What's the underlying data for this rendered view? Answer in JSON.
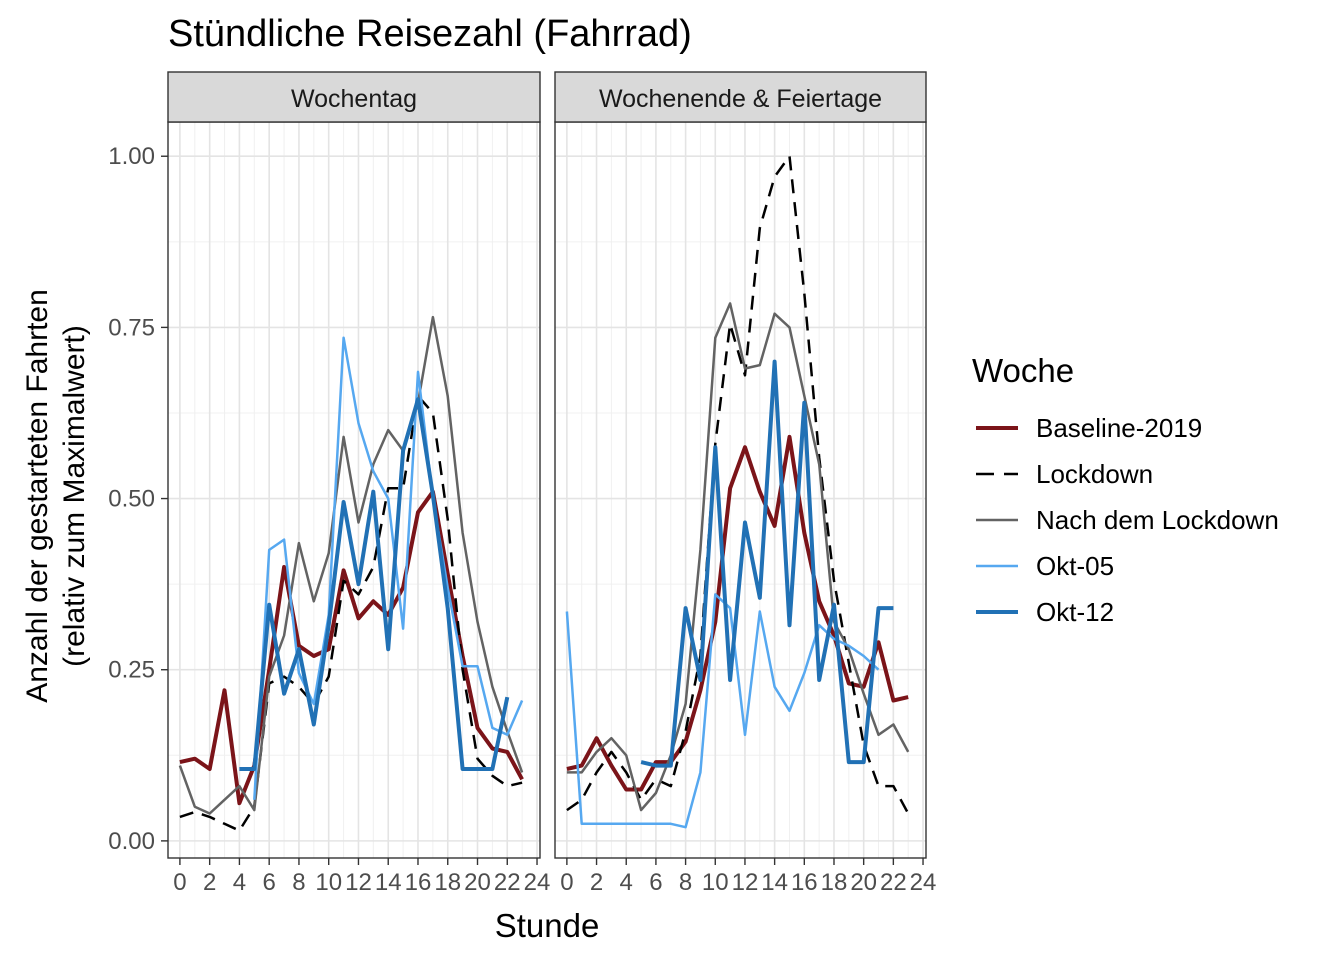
{
  "chart_data": {
    "type": "line",
    "title": "Stündliche Reisezahl (Fahrrad)",
    "xlabel": "Stunde",
    "ylabel_line1": "Anzahl der gestarteten Fahrten",
    "ylabel_line2": "(relativ zum Maximalwert)",
    "xlim": [
      -0.8,
      24.2
    ],
    "ylim": [
      -0.025,
      1.05
    ],
    "x_ticks": [
      0,
      2,
      4,
      6,
      8,
      10,
      12,
      14,
      16,
      18,
      20,
      22,
      24
    ],
    "x_tick_labels": [
      "0",
      "2",
      "4",
      "6",
      "8",
      "10",
      "12",
      "14",
      "16",
      "18",
      "20",
      "22",
      "24"
    ],
    "y_ticks": [
      0,
      0.25,
      0.5,
      0.75,
      1.0
    ],
    "y_tick_labels": [
      "0.00",
      "0.25",
      "0.50",
      "0.75",
      "1.00"
    ],
    "grid": true,
    "legend": {
      "title": "Woche",
      "placement": "right",
      "entries": [
        "Baseline-2019",
        "Lockdown",
        "Nach dem Lockdown",
        "Okt-05",
        "Okt-12"
      ]
    },
    "series_styles": [
      {
        "name": "Baseline-2019",
        "color": "#7b1419",
        "dash": "solid",
        "weight": "bold"
      },
      {
        "name": "Lockdown",
        "color": "#000000",
        "dash": "dashed",
        "weight": "normal"
      },
      {
        "name": "Nach dem Lockdown",
        "color": "#636363",
        "dash": "solid",
        "weight": "normal"
      },
      {
        "name": "Okt-05",
        "color": "#56a8f0",
        "dash": "solid",
        "weight": "normal"
      },
      {
        "name": "Okt-12",
        "color": "#2171b5",
        "dash": "solid",
        "weight": "bold"
      }
    ],
    "panels": [
      {
        "label": "Wochentag",
        "series": [
          {
            "name": "Baseline-2019",
            "x": [
              0,
              1,
              2,
              3,
              4,
              5,
              6,
              7,
              8,
              9,
              10,
              11,
              12,
              13,
              14,
              15,
              16,
              17,
              18,
              19,
              20,
              21,
              22,
              23
            ],
            "values": [
              0.115,
              0.12,
              0.105,
              0.22,
              0.055,
              0.11,
              0.25,
              0.4,
              0.285,
              0.27,
              0.28,
              0.395,
              0.325,
              0.35,
              0.33,
              0.37,
              0.48,
              0.51,
              0.39,
              0.27,
              0.165,
              0.135,
              0.13,
              0.09
            ]
          },
          {
            "name": "Lockdown",
            "x": [
              0,
              1,
              2,
              3,
              4,
              5,
              6,
              7,
              8,
              9,
              10,
              11,
              12,
              13,
              14,
              15,
              16,
              17,
              18,
              19,
              20,
              21,
              22,
              23
            ],
            "values": [
              0.035,
              0.042,
              0.035,
              0.025,
              0.015,
              0.05,
              0.23,
              0.24,
              0.225,
              0.2,
              0.24,
              0.38,
              0.36,
              0.4,
              0.515,
              0.515,
              0.65,
              0.625,
              0.47,
              0.25,
              0.12,
              0.095,
              0.08,
              0.085
            ]
          },
          {
            "name": "Nach dem Lockdown",
            "x": [
              0,
              1,
              2,
              3,
              4,
              5,
              6,
              7,
              8,
              9,
              10,
              11,
              12,
              13,
              14,
              15,
              16,
              17,
              18,
              19,
              20,
              21,
              22,
              23
            ],
            "values": [
              0.11,
              0.05,
              0.04,
              0.06,
              0.08,
              0.045,
              0.24,
              0.3,
              0.435,
              0.35,
              0.42,
              0.59,
              0.465,
              0.55,
              0.6,
              0.57,
              0.64,
              0.765,
              0.65,
              0.45,
              0.32,
              0.225,
              0.16,
              0.1
            ]
          },
          {
            "name": "Okt-05",
            "x": [
              5,
              6,
              7,
              8,
              9,
              10,
              11,
              12,
              13,
              14,
              15,
              16,
              17,
              18,
              19,
              20,
              21,
              22,
              23
            ],
            "values": [
              0.06,
              0.425,
              0.44,
              0.245,
              0.2,
              0.33,
              0.735,
              0.61,
              0.54,
              0.5,
              0.31,
              0.685,
              0.5,
              0.37,
              0.255,
              0.255,
              0.165,
              0.155,
              0.205
            ]
          },
          {
            "name": "Okt-12",
            "x": [
              4,
              5,
              6,
              7,
              8,
              9,
              10,
              11,
              12,
              13,
              14,
              15,
              16,
              17,
              18,
              19,
              20,
              21,
              22
            ],
            "values": [
              0.105,
              0.105,
              0.345,
              0.215,
              0.28,
              0.17,
              0.315,
              0.495,
              0.375,
              0.51,
              0.28,
              0.57,
              0.645,
              0.505,
              0.34,
              0.105,
              0.105,
              0.105,
              0.21
            ]
          }
        ]
      },
      {
        "label": "Wochenende & Feiertage",
        "series": [
          {
            "name": "Baseline-2019",
            "x": [
              0,
              1,
              2,
              3,
              4,
              5,
              6,
              7,
              8,
              9,
              10,
              11,
              12,
              13,
              14,
              15,
              16,
              17,
              18,
              19,
              20,
              21,
              22,
              23
            ],
            "values": [
              0.105,
              0.11,
              0.15,
              0.11,
              0.075,
              0.075,
              0.115,
              0.115,
              0.145,
              0.22,
              0.32,
              0.515,
              0.575,
              0.51,
              0.46,
              0.59,
              0.45,
              0.35,
              0.3,
              0.23,
              0.225,
              0.29,
              0.205,
              0.21
            ]
          },
          {
            "name": "Lockdown",
            "x": [
              0,
              1,
              2,
              3,
              4,
              5,
              6,
              7,
              8,
              9,
              10,
              11,
              12,
              13,
              14,
              15,
              16,
              17,
              18,
              19,
              20,
              21,
              22,
              23
            ],
            "values": [
              0.045,
              0.06,
              0.1,
              0.13,
              0.1,
              0.06,
              0.09,
              0.08,
              0.16,
              0.27,
              0.58,
              0.755,
              0.68,
              0.895,
              0.97,
              1.0,
              0.8,
              0.56,
              0.38,
              0.26,
              0.14,
              0.08,
              0.08,
              0.04
            ]
          },
          {
            "name": "Nach dem Lockdown",
            "x": [
              0,
              1,
              2,
              3,
              4,
              5,
              6,
              7,
              8,
              9,
              10,
              11,
              12,
              13,
              14,
              15,
              16,
              17,
              18,
              19,
              20,
              21,
              22,
              23
            ],
            "values": [
              0.1,
              0.1,
              0.13,
              0.15,
              0.125,
              0.045,
              0.07,
              0.125,
              0.2,
              0.425,
              0.735,
              0.785,
              0.69,
              0.695,
              0.77,
              0.75,
              0.65,
              0.55,
              0.32,
              0.28,
              0.215,
              0.155,
              0.17,
              0.13
            ]
          },
          {
            "name": "Okt-05",
            "x": [
              0,
              1,
              2,
              3,
              4,
              5,
              6,
              7,
              8,
              9,
              10,
              11,
              12,
              13,
              14,
              15,
              16,
              17,
              18,
              19,
              20,
              21
            ],
            "values": [
              0.335,
              0.025,
              0.025,
              0.025,
              0.025,
              0.025,
              0.025,
              0.025,
              0.02,
              0.1,
              0.36,
              0.34,
              0.155,
              0.335,
              0.225,
              0.19,
              0.245,
              0.315,
              0.295,
              0.285,
              0.27,
              0.25
            ]
          },
          {
            "name": "Okt-12",
            "x": [
              5,
              6,
              7,
              8,
              9,
              10,
              11,
              12,
              13,
              14,
              15,
              16,
              17,
              18,
              19,
              20,
              21,
              22
            ],
            "values": [
              0.115,
              0.11,
              0.11,
              0.34,
              0.235,
              0.575,
              0.235,
              0.465,
              0.355,
              0.7,
              0.315,
              0.64,
              0.235,
              0.345,
              0.115,
              0.115,
              0.34,
              0.34
            ]
          }
        ]
      }
    ]
  }
}
